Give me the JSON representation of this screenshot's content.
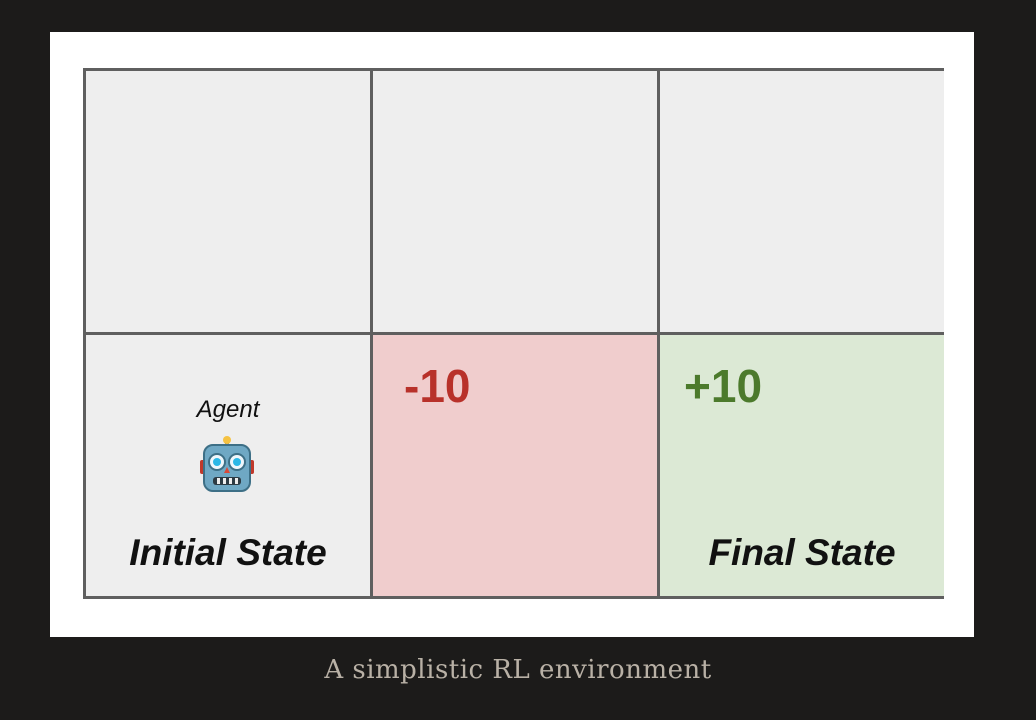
{
  "diagram": {
    "agent_label": "Agent",
    "agent_icon": "robot-icon",
    "initial_state_label": "Initial State",
    "final_state_label": "Final State",
    "negative_reward": "-10",
    "positive_reward": "+10",
    "colors": {
      "cell_default": "#eeeeee",
      "cell_negative": "#f0cdcd",
      "cell_positive": "#dce9d5",
      "negative_text": "#b8312a",
      "positive_text": "#4c7a2c",
      "grid_lines": "#5f5f5f"
    }
  },
  "caption": "A simplistic RL environment"
}
